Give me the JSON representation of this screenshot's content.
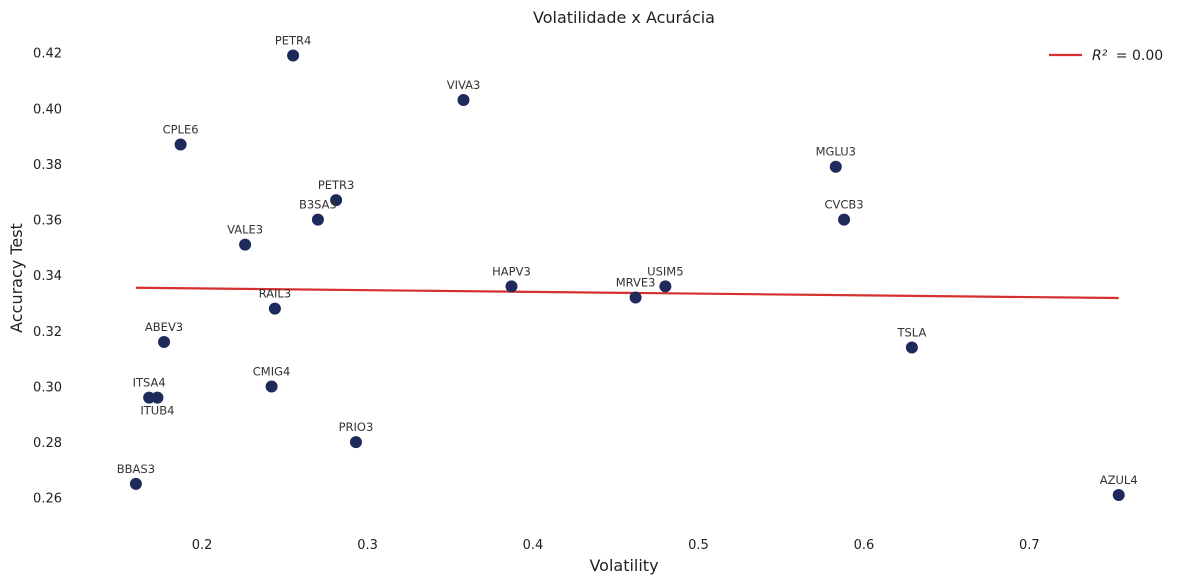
{
  "chart_data": {
    "type": "scatter",
    "title": "Volatilidade x Acurácia",
    "xlabel": "Volatility",
    "ylabel": "Accuracy Test",
    "xlim": [
      0.125,
      0.785
    ],
    "ylim": [
      0.252,
      0.426
    ],
    "xticks": [
      "0.2",
      "0.3",
      "0.4",
      "0.5",
      "0.6",
      "0.7"
    ],
    "xtick_values": [
      0.2,
      0.3,
      0.4,
      0.5,
      0.6,
      0.7
    ],
    "yticks": [
      "0.26",
      "0.28",
      "0.30",
      "0.32",
      "0.34",
      "0.36",
      "0.38",
      "0.40",
      "0.42"
    ],
    "ytick_values": [
      0.26,
      0.28,
      0.3,
      0.32,
      0.34,
      0.36,
      0.38,
      0.4,
      0.42
    ],
    "grid": false,
    "point_color": "#1f2a5c",
    "line_color": "#d62f2f",
    "legend": {
      "position": "top-right",
      "entries": [
        {
          "label": "= 0.00",
          "symbol": "R²"
        }
      ]
    },
    "points": [
      {
        "label": "PETR4",
        "x": 0.255,
        "y": 0.419,
        "label_pos": "above"
      },
      {
        "label": "VIVA3",
        "x": 0.358,
        "y": 0.403,
        "label_pos": "above"
      },
      {
        "label": "CPLE6",
        "x": 0.187,
        "y": 0.387,
        "label_pos": "above"
      },
      {
        "label": "MGLU3",
        "x": 0.583,
        "y": 0.379,
        "label_pos": "above"
      },
      {
        "label": "PETR3",
        "x": 0.281,
        "y": 0.367,
        "label_pos": "above"
      },
      {
        "label": "B3SA3",
        "x": 0.27,
        "y": 0.36,
        "label_pos": "above"
      },
      {
        "label": "CVCB3",
        "x": 0.588,
        "y": 0.36,
        "label_pos": "above"
      },
      {
        "label": "VALE3",
        "x": 0.226,
        "y": 0.351,
        "label_pos": "above"
      },
      {
        "label": "HAPV3",
        "x": 0.387,
        "y": 0.336,
        "label_pos": "above"
      },
      {
        "label": "USIM5",
        "x": 0.48,
        "y": 0.336,
        "label_pos": "above"
      },
      {
        "label": "MRVE3",
        "x": 0.462,
        "y": 0.332,
        "label_pos": "above"
      },
      {
        "label": "RAIL3",
        "x": 0.244,
        "y": 0.328,
        "label_pos": "above"
      },
      {
        "label": "ABEV3",
        "x": 0.177,
        "y": 0.316,
        "label_pos": "above"
      },
      {
        "label": "TSLA",
        "x": 0.629,
        "y": 0.314,
        "label_pos": "above"
      },
      {
        "label": "CMIG4",
        "x": 0.242,
        "y": 0.3,
        "label_pos": "above"
      },
      {
        "label": "ITSA4",
        "x": 0.168,
        "y": 0.296,
        "label_pos": "above"
      },
      {
        "label": "ITUB4",
        "x": 0.173,
        "y": 0.296,
        "label_pos": "below"
      },
      {
        "label": "PRIO3",
        "x": 0.293,
        "y": 0.28,
        "label_pos": "above"
      },
      {
        "label": "BBAS3",
        "x": 0.16,
        "y": 0.265,
        "label_pos": "above"
      },
      {
        "label": "AZUL4",
        "x": 0.754,
        "y": 0.261,
        "label_pos": "above"
      }
    ],
    "fit_line": {
      "x": [
        0.16,
        0.754
      ],
      "y": [
        0.3355,
        0.3318
      ]
    }
  }
}
